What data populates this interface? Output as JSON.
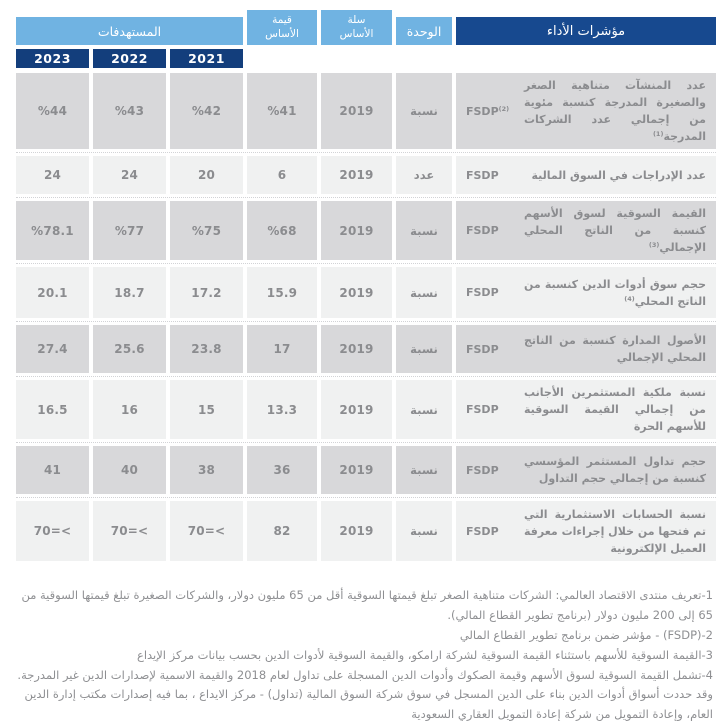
{
  "colors": {
    "header_navy": "#17498f",
    "year_navy": "#133e7c",
    "header_light_blue": "#70b3e2",
    "row_dark": "#d8d8da",
    "row_light": "#f0f1f1",
    "text_gray": "#8b8c8f"
  },
  "table": {
    "header": {
      "indicators": "مؤشرات الأداء",
      "unit": "الوحدة",
      "base_year_line1": "سلة",
      "base_year_line2": "الأساس",
      "base_value_line1": "قيمة",
      "base_value_line2": "الأساس",
      "targets": "المستهدفات",
      "years": [
        "2021",
        "2022",
        "2023"
      ]
    },
    "rows": [
      {
        "indicator": "عدد المنشآت متناهية الصغر والصغيرة المدرجة كنسبة مئوية من إجمالي عدد الشركات المدرجة",
        "indicator_sup": "(1)",
        "program": "FSDP",
        "program_sup": "(2)",
        "unit": "نسبة",
        "base_year": "2019",
        "base_value": "%41",
        "t2021": "%42",
        "t2022": "%43",
        "t2023": "%44"
      },
      {
        "indicator": "عدد الإدراجات في السوق المالية",
        "program": "FSDP",
        "unit": "عدد",
        "base_year": "2019",
        "base_value": "6",
        "t2021": "20",
        "t2022": "24",
        "t2023": "24"
      },
      {
        "indicator": "القيمة السوقية لسوق الأسهم كنسبة من الناتج المحلي الإجمالي",
        "indicator_sup": "(3)",
        "program": "FSDP",
        "unit": "نسبة",
        "base_year": "2019",
        "base_value": "%68",
        "t2021": "%75",
        "t2022": "%77",
        "t2023": "%78.1"
      },
      {
        "indicator": "حجم سوق أدوات الدين كنسبة من الناتج المحلي",
        "indicator_sup": "(4)",
        "program": "FSDP",
        "unit": "نسبة",
        "base_year": "2019",
        "base_value": "15.9",
        "t2021": "17.2",
        "t2022": "18.7",
        "t2023": "20.1"
      },
      {
        "indicator": "الأصول المدارة كنسبة من الناتج المحلي الإجمالي",
        "program": "FSDP",
        "unit": "نسبة",
        "base_year": "2019",
        "base_value": "17",
        "t2021": "23.8",
        "t2022": "25.6",
        "t2023": "27.4"
      },
      {
        "indicator": "نسبة ملكية المستثمرين الأجانب من إجمالي القيمة السوقية للأسهم الحرة",
        "program": "FSDP",
        "unit": "نسبة",
        "base_year": "2019",
        "base_value": "13.3",
        "t2021": "15",
        "t2022": "16",
        "t2023": "16.5"
      },
      {
        "indicator": "حجم تداول المستثمر المؤسسي كنسبة من إجمالي حجم التداول",
        "program": "FSDP",
        "unit": "نسبة",
        "base_year": "2019",
        "base_value": "36",
        "t2021": "38",
        "t2022": "40",
        "t2023": "41"
      },
      {
        "indicator": "نسبة الحسابات الاستثمارية التي تم فتحها من خلال إجراءات معرفة العميل الإلكترونية",
        "program": "FSDP",
        "unit": "نسبة",
        "base_year": "2019",
        "base_value": "82",
        "t2021": "70=<",
        "t2022": "70=<",
        "t2023": "70=<"
      }
    ]
  },
  "footnotes": [
    "1-تعريف منتدى الاقتصاد العالمي: الشركات متناهية الصغر تبلغ قيمتها السوقية أقل من 65 مليون دولار، والشركات الصغيرة تبلغ قيمتها السوقية من 65 إلى 200 مليون دولار (برنامج تطوير القطاع المالي).",
    "2-(FSDP) - مؤشر ضمن برنامج تطوير القطاع المالي",
    "3-القيمة السوقية للأسهم باستثناء القيمة السوقية لشركة ارامكو، والقيمة السوقية لأدوات الدين بحسب بيانات مركز الإيداع",
    "4-تشمل القيمة السوقية لسوق الأسهم وقيمة الصكوك وأدوات الدين المسجلة على تداول لعام 2018 والقيمة الاسمية لإصدارات الدين غير المدرجة. وقد حددت أسواق أدوات الدين بناء على الدين المسجل في سوق شركة السوق المالية (تداول) - مركز الايداع ، بما فيه إصدارات مكتب إدارة الدين العام، وإعادة التمويل من شركة إعادة التمويل العقاري السعودية"
  ]
}
